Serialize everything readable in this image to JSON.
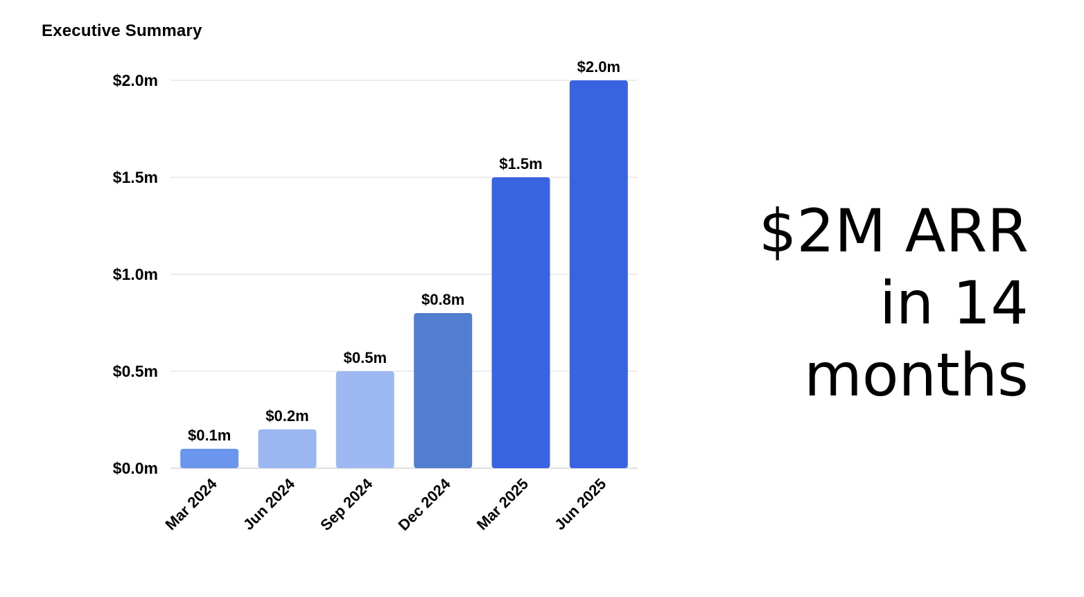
{
  "header": {
    "label": "Executive Summary"
  },
  "headline": {
    "line1": "$2M ARR",
    "line2": "in 14",
    "line3": "months"
  },
  "colors": {
    "grid": "#d9d9d9",
    "axis": "#bfbfbf"
  },
  "chart_data": {
    "type": "bar",
    "title": "",
    "xlabel": "",
    "ylabel": "",
    "ylim": [
      0,
      2.0
    ],
    "yticks": [
      0.0,
      0.5,
      1.0,
      1.5,
      2.0
    ],
    "ytick_labels": [
      "$0.0m",
      "$0.5m",
      "$1.0m",
      "$1.5m",
      "$2.0m"
    ],
    "grid": true,
    "categories": [
      "Mar 2024",
      "Jun 2024",
      "Sep 2024",
      "Dec 2024",
      "Mar 2025",
      "Jun 2025"
    ],
    "values": [
      0.1,
      0.2,
      0.5,
      0.8,
      1.5,
      2.0
    ],
    "value_labels": [
      "$0.1m",
      "$0.2m",
      "$0.5m",
      "$0.8m",
      "$1.5m",
      "$2.0m"
    ],
    "bar_colors": [
      "#6b96ee",
      "#9ab7f1",
      "#9eb9f2",
      "#537dcf",
      "#3a63e2",
      "#3a63e2"
    ]
  }
}
